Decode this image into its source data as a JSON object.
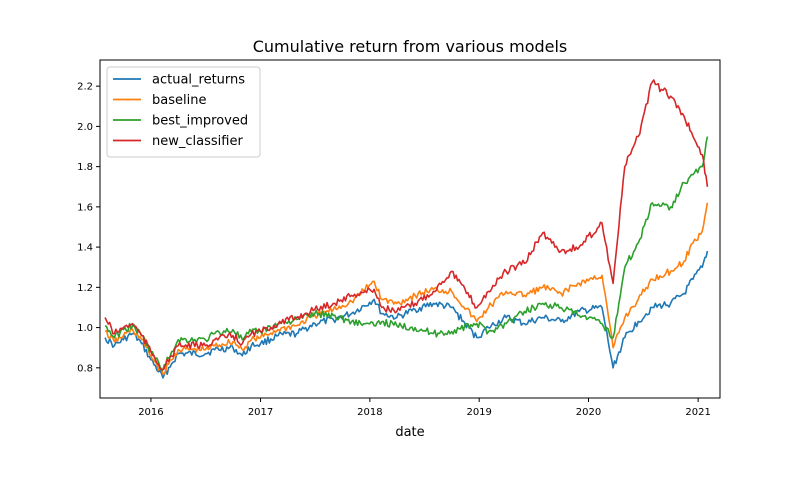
{
  "chart_data": {
    "type": "line",
    "title": "Cumulative return from various models",
    "xlabel": "date",
    "ylabel": "",
    "x_range": [
      "2015-07-15",
      "2021-03-15"
    ],
    "ylim": [
      0.65,
      2.33
    ],
    "x_ticks": [
      "2016",
      "2017",
      "2018",
      "2019",
      "2020",
      "2021"
    ],
    "y_ticks": [
      "0.8",
      "1.0",
      "1.2",
      "1.4",
      "1.6",
      "1.8",
      "2.0",
      "2.2"
    ],
    "grid": false,
    "legend_position": "top-left",
    "series": [
      {
        "name": "actual_returns",
        "color": "#1f77b4",
        "points": [
          [
            "2015-08-01",
            0.95
          ],
          [
            "2015-09-01",
            0.91
          ],
          [
            "2015-10-01",
            0.94
          ],
          [
            "2015-11-01",
            0.97
          ],
          [
            "2015-12-01",
            0.92
          ],
          [
            "2016-01-01",
            0.84
          ],
          [
            "2016-02-10",
            0.75
          ],
          [
            "2016-03-10",
            0.82
          ],
          [
            "2016-04-01",
            0.87
          ],
          [
            "2016-07-01",
            0.87
          ],
          [
            "2016-08-01",
            0.89
          ],
          [
            "2016-10-01",
            0.9
          ],
          [
            "2016-11-01",
            0.86
          ],
          [
            "2016-12-01",
            0.91
          ],
          [
            "2017-01-01",
            0.92
          ],
          [
            "2017-03-01",
            0.96
          ],
          [
            "2017-05-01",
            0.97
          ],
          [
            "2017-07-01",
            1.02
          ],
          [
            "2017-09-01",
            1.04
          ],
          [
            "2017-11-01",
            1.07
          ],
          [
            "2018-01-15",
            1.14
          ],
          [
            "2018-02-10",
            1.07
          ],
          [
            "2018-04-01",
            1.05
          ],
          [
            "2018-06-01",
            1.09
          ],
          [
            "2018-08-01",
            1.12
          ],
          [
            "2018-10-01",
            1.1
          ],
          [
            "2018-12-24",
            0.95
          ],
          [
            "2019-02-01",
            1.0
          ],
          [
            "2019-04-01",
            1.05
          ],
          [
            "2019-06-01",
            1.02
          ],
          [
            "2019-08-01",
            1.05
          ],
          [
            "2019-10-01",
            1.03
          ],
          [
            "2019-12-01",
            1.08
          ],
          [
            "2020-02-15",
            1.1
          ],
          [
            "2020-03-23",
            0.8
          ],
          [
            "2020-05-01",
            0.95
          ],
          [
            "2020-06-15",
            1.03
          ],
          [
            "2020-08-01",
            1.1
          ],
          [
            "2020-10-01",
            1.12
          ],
          [
            "2020-11-15",
            1.17
          ],
          [
            "2020-12-15",
            1.24
          ],
          [
            "2021-01-15",
            1.3
          ],
          [
            "2021-02-01",
            1.38
          ]
        ]
      },
      {
        "name": "baseline",
        "color": "#ff7f0e",
        "points": [
          [
            "2015-08-01",
            0.98
          ],
          [
            "2015-09-01",
            0.93
          ],
          [
            "2015-10-01",
            0.96
          ],
          [
            "2015-11-01",
            0.99
          ],
          [
            "2015-12-01",
            0.94
          ],
          [
            "2016-01-01",
            0.86
          ],
          [
            "2016-02-10",
            0.77
          ],
          [
            "2016-03-10",
            0.84
          ],
          [
            "2016-04-01",
            0.89
          ],
          [
            "2016-07-01",
            0.89
          ],
          [
            "2016-08-01",
            0.91
          ],
          [
            "2016-10-01",
            0.93
          ],
          [
            "2016-11-01",
            0.89
          ],
          [
            "2016-12-01",
            0.94
          ],
          [
            "2017-01-01",
            0.95
          ],
          [
            "2017-03-01",
            0.99
          ],
          [
            "2017-05-01",
            1.01
          ],
          [
            "2017-07-01",
            1.06
          ],
          [
            "2017-09-01",
            1.09
          ],
          [
            "2017-11-01",
            1.13
          ],
          [
            "2018-01-15",
            1.23
          ],
          [
            "2018-02-10",
            1.14
          ],
          [
            "2018-04-01",
            1.12
          ],
          [
            "2018-06-01",
            1.16
          ],
          [
            "2018-08-01",
            1.19
          ],
          [
            "2018-10-01",
            1.18
          ],
          [
            "2018-12-24",
            1.03
          ],
          [
            "2019-02-01",
            1.1
          ],
          [
            "2019-04-01",
            1.18
          ],
          [
            "2019-06-01",
            1.16
          ],
          [
            "2019-08-01",
            1.2
          ],
          [
            "2019-10-01",
            1.17
          ],
          [
            "2019-12-01",
            1.22
          ],
          [
            "2020-02-15",
            1.26
          ],
          [
            "2020-03-23",
            0.9
          ],
          [
            "2020-05-01",
            1.05
          ],
          [
            "2020-06-15",
            1.14
          ],
          [
            "2020-08-01",
            1.24
          ],
          [
            "2020-10-01",
            1.28
          ],
          [
            "2020-11-15",
            1.33
          ],
          [
            "2020-12-15",
            1.42
          ],
          [
            "2021-01-15",
            1.48
          ],
          [
            "2021-02-01",
            1.62
          ]
        ]
      },
      {
        "name": "best_improved",
        "color": "#2ca02c",
        "points": [
          [
            "2015-08-01",
            1.01
          ],
          [
            "2015-09-01",
            0.95
          ],
          [
            "2015-10-01",
            0.99
          ],
          [
            "2015-11-01",
            1.01
          ],
          [
            "2015-12-01",
            0.96
          ],
          [
            "2016-01-01",
            0.88
          ],
          [
            "2016-02-10",
            0.79
          ],
          [
            "2016-03-10",
            0.88
          ],
          [
            "2016-04-01",
            0.94
          ],
          [
            "2016-07-01",
            0.94
          ],
          [
            "2016-08-01",
            0.97
          ],
          [
            "2016-10-01",
            0.99
          ],
          [
            "2016-11-01",
            0.94
          ],
          [
            "2016-12-01",
            0.98
          ],
          [
            "2017-01-01",
            0.98
          ],
          [
            "2017-03-01",
            1.02
          ],
          [
            "2017-05-01",
            1.04
          ],
          [
            "2017-07-01",
            1.07
          ],
          [
            "2017-09-01",
            1.06
          ],
          [
            "2017-11-01",
            1.03
          ],
          [
            "2018-01-15",
            1.01
          ],
          [
            "2018-02-10",
            1.03
          ],
          [
            "2018-04-01",
            1.01
          ],
          [
            "2018-06-01",
            1.0
          ],
          [
            "2018-08-01",
            0.97
          ],
          [
            "2018-10-01",
            0.98
          ],
          [
            "2018-12-24",
            1.02
          ],
          [
            "2019-02-01",
            0.98
          ],
          [
            "2019-04-01",
            1.02
          ],
          [
            "2019-06-01",
            1.08
          ],
          [
            "2019-08-01",
            1.12
          ],
          [
            "2019-10-01",
            1.1
          ],
          [
            "2019-12-01",
            1.06
          ],
          [
            "2020-02-15",
            1.02
          ],
          [
            "2020-03-23",
            0.95
          ],
          [
            "2020-05-01",
            1.3
          ],
          [
            "2020-06-15",
            1.42
          ],
          [
            "2020-08-01",
            1.62
          ],
          [
            "2020-10-01",
            1.6
          ],
          [
            "2020-11-15",
            1.72
          ],
          [
            "2020-12-15",
            1.76
          ],
          [
            "2021-01-15",
            1.8
          ],
          [
            "2021-02-01",
            1.95
          ]
        ]
      },
      {
        "name": "new_classifier",
        "color": "#d62728",
        "points": [
          [
            "2015-08-01",
            1.05
          ],
          [
            "2015-09-01",
            0.97
          ],
          [
            "2015-10-01",
            1.0
          ],
          [
            "2015-11-01",
            1.02
          ],
          [
            "2015-12-01",
            0.96
          ],
          [
            "2016-01-01",
            0.88
          ],
          [
            "2016-02-10",
            0.79
          ],
          [
            "2016-03-10",
            0.86
          ],
          [
            "2016-04-01",
            0.91
          ],
          [
            "2016-07-01",
            0.91
          ],
          [
            "2016-08-01",
            0.94
          ],
          [
            "2016-10-01",
            0.96
          ],
          [
            "2016-11-01",
            0.92
          ],
          [
            "2016-12-01",
            0.97
          ],
          [
            "2017-01-01",
            0.98
          ],
          [
            "2017-03-01",
            1.02
          ],
          [
            "2017-05-01",
            1.05
          ],
          [
            "2017-07-01",
            1.09
          ],
          [
            "2017-09-01",
            1.12
          ],
          [
            "2017-11-01",
            1.16
          ],
          [
            "2018-01-15",
            1.19
          ],
          [
            "2018-02-10",
            1.1
          ],
          [
            "2018-04-01",
            1.08
          ],
          [
            "2018-06-01",
            1.12
          ],
          [
            "2018-08-01",
            1.18
          ],
          [
            "2018-10-01",
            1.28
          ],
          [
            "2018-12-24",
            1.1
          ],
          [
            "2019-02-01",
            1.18
          ],
          [
            "2019-04-01",
            1.28
          ],
          [
            "2019-06-01",
            1.32
          ],
          [
            "2019-08-01",
            1.47
          ],
          [
            "2019-10-01",
            1.38
          ],
          [
            "2019-12-01",
            1.4
          ],
          [
            "2020-02-15",
            1.52
          ],
          [
            "2020-03-23",
            1.22
          ],
          [
            "2020-05-01",
            1.8
          ],
          [
            "2020-06-15",
            1.95
          ],
          [
            "2020-08-01",
            2.22
          ],
          [
            "2020-10-01",
            2.15
          ],
          [
            "2020-11-15",
            2.05
          ],
          [
            "2020-12-15",
            1.95
          ],
          [
            "2021-01-15",
            1.86
          ],
          [
            "2021-02-01",
            1.7
          ]
        ]
      }
    ]
  }
}
